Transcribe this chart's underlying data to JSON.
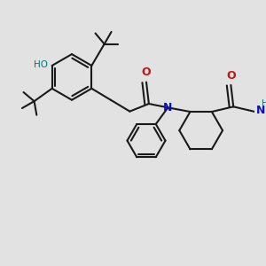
{
  "bg_color": "#e2e2e2",
  "bond_color": "#1a1a1a",
  "N_color": "#1111bb",
  "O_color": "#cc1111",
  "OH_color": "#007777",
  "H_color": "#007777",
  "line_width": 1.5,
  "figsize": [
    3.0,
    3.0
  ],
  "dpi": 100,
  "xlim": [
    0,
    10
  ],
  "ylim": [
    0,
    10
  ]
}
